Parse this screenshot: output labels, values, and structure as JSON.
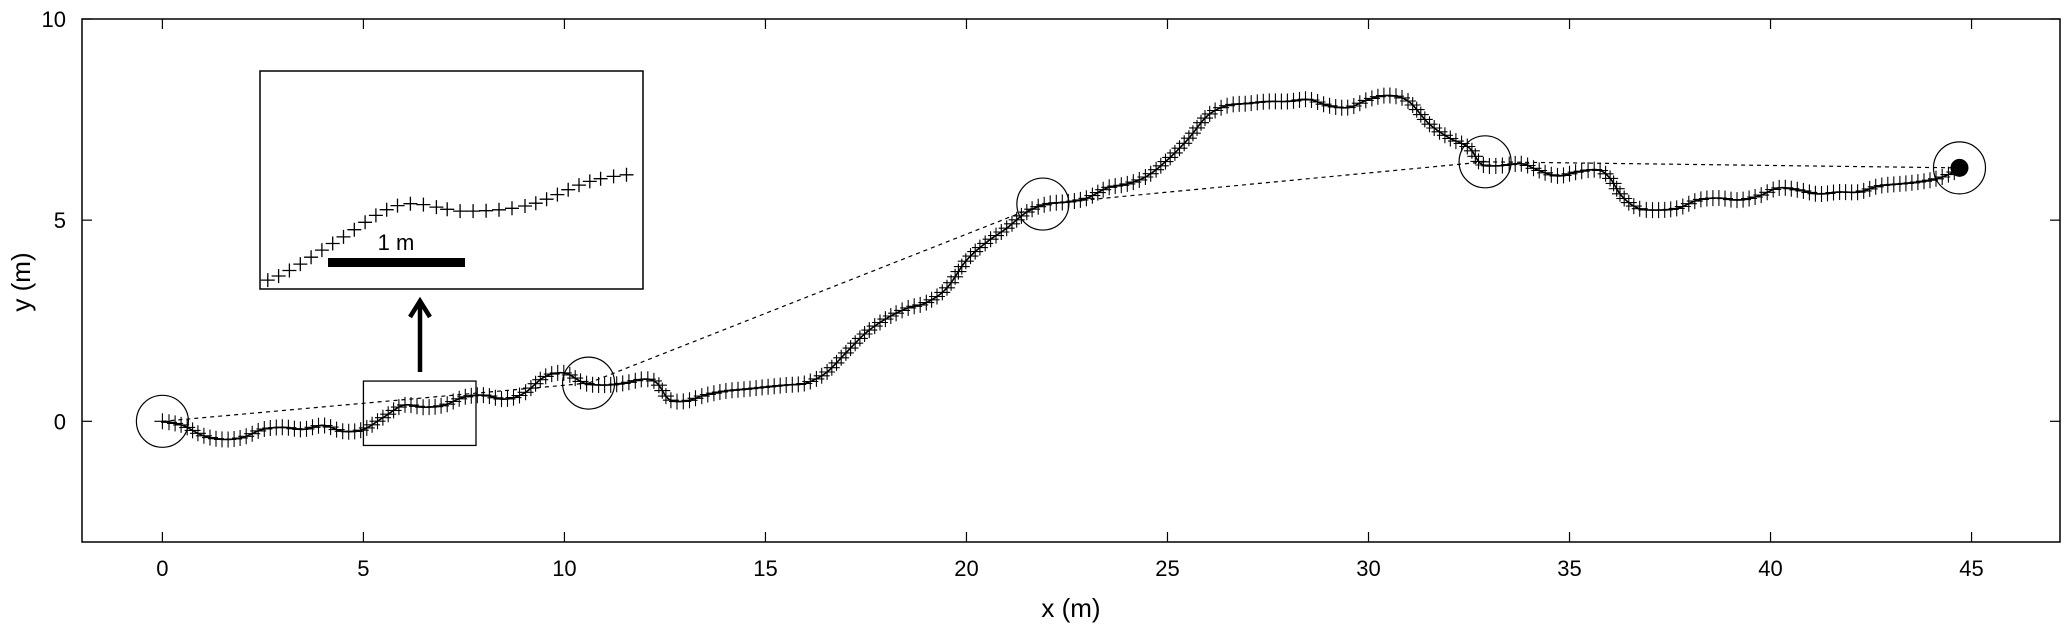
{
  "chart_data": {
    "type": "scatter",
    "xlabel": "x (m)",
    "ylabel": "y (m)",
    "xlim": [
      -2,
      47.2
    ],
    "ylim": [
      -3,
      10
    ],
    "xticks": [
      0,
      5,
      10,
      15,
      20,
      25,
      30,
      35,
      40,
      45
    ],
    "yticks": [
      0,
      5,
      10
    ],
    "grid": false,
    "path": [
      [
        0,
        0
      ],
      [
        0.5,
        -0.1
      ],
      [
        1.0,
        -0.35
      ],
      [
        1.5,
        -0.45
      ],
      [
        2.0,
        -0.4
      ],
      [
        2.5,
        -0.2
      ],
      [
        3.0,
        -0.15
      ],
      [
        3.5,
        -0.2
      ],
      [
        4.0,
        -0.1
      ],
      [
        4.5,
        -0.25
      ],
      [
        5.0,
        -0.2
      ],
      [
        5.5,
        0.1
      ],
      [
        6.0,
        0.4
      ],
      [
        6.5,
        0.35
      ],
      [
        7.0,
        0.4
      ],
      [
        7.5,
        0.6
      ],
      [
        8.0,
        0.65
      ],
      [
        8.5,
        0.55
      ],
      [
        9.0,
        0.7
      ],
      [
        9.5,
        1.1
      ],
      [
        10.0,
        1.2
      ],
      [
        10.5,
        0.95
      ],
      [
        11.0,
        0.9
      ],
      [
        11.5,
        0.95
      ],
      [
        12.0,
        1.05
      ],
      [
        12.3,
        0.95
      ],
      [
        12.6,
        0.55
      ],
      [
        13.0,
        0.5
      ],
      [
        13.5,
        0.65
      ],
      [
        14.0,
        0.75
      ],
      [
        14.5,
        0.8
      ],
      [
        15.0,
        0.85
      ],
      [
        15.5,
        0.9
      ],
      [
        16.0,
        0.95
      ],
      [
        16.5,
        1.2
      ],
      [
        17.0,
        1.7
      ],
      [
        17.5,
        2.2
      ],
      [
        18.0,
        2.55
      ],
      [
        18.5,
        2.8
      ],
      [
        19.0,
        2.95
      ],
      [
        19.5,
        3.3
      ],
      [
        20.0,
        4.0
      ],
      [
        20.5,
        4.45
      ],
      [
        21.0,
        4.8
      ],
      [
        21.5,
        5.2
      ],
      [
        22.0,
        5.4
      ],
      [
        22.5,
        5.45
      ],
      [
        23.0,
        5.55
      ],
      [
        23.5,
        5.8
      ],
      [
        24.0,
        5.9
      ],
      [
        24.5,
        6.1
      ],
      [
        25.0,
        6.5
      ],
      [
        25.5,
        7.0
      ],
      [
        26.0,
        7.6
      ],
      [
        26.5,
        7.85
      ],
      [
        27.0,
        7.9
      ],
      [
        27.5,
        7.95
      ],
      [
        28.0,
        7.95
      ],
      [
        28.5,
        8.0
      ],
      [
        29.0,
        7.85
      ],
      [
        29.5,
        7.8
      ],
      [
        30.0,
        8.0
      ],
      [
        30.5,
        8.1
      ],
      [
        31.0,
        7.95
      ],
      [
        31.5,
        7.4
      ],
      [
        32.0,
        7.05
      ],
      [
        32.5,
        6.8
      ],
      [
        32.8,
        6.4
      ],
      [
        33.2,
        6.35
      ],
      [
        33.8,
        6.4
      ],
      [
        34.2,
        6.25
      ],
      [
        34.7,
        6.1
      ],
      [
        35.2,
        6.2
      ],
      [
        35.7,
        6.25
      ],
      [
        36.0,
        6.05
      ],
      [
        36.3,
        5.6
      ],
      [
        36.7,
        5.3
      ],
      [
        37.2,
        5.25
      ],
      [
        37.7,
        5.3
      ],
      [
        38.2,
        5.5
      ],
      [
        38.7,
        5.55
      ],
      [
        39.2,
        5.5
      ],
      [
        39.7,
        5.6
      ],
      [
        40.2,
        5.8
      ],
      [
        40.7,
        5.75
      ],
      [
        41.2,
        5.65
      ],
      [
        41.7,
        5.7
      ],
      [
        42.2,
        5.7
      ],
      [
        42.7,
        5.85
      ],
      [
        43.2,
        5.9
      ],
      [
        43.7,
        5.95
      ],
      [
        44.2,
        6.05
      ],
      [
        44.7,
        6.25
      ]
    ],
    "waypoints": [
      [
        0,
        0
      ],
      [
        10.6,
        0.95
      ],
      [
        21.9,
        5.4
      ],
      [
        32.9,
        6.45
      ],
      [
        44.7,
        6.3
      ]
    ],
    "end_point": [
      44.7,
      6.3
    ],
    "zoom_box": {
      "x_range": [
        5.0,
        7.8
      ],
      "y_range": [
        -0.6,
        1.0
      ]
    },
    "inset_scale_label": "1 m"
  }
}
